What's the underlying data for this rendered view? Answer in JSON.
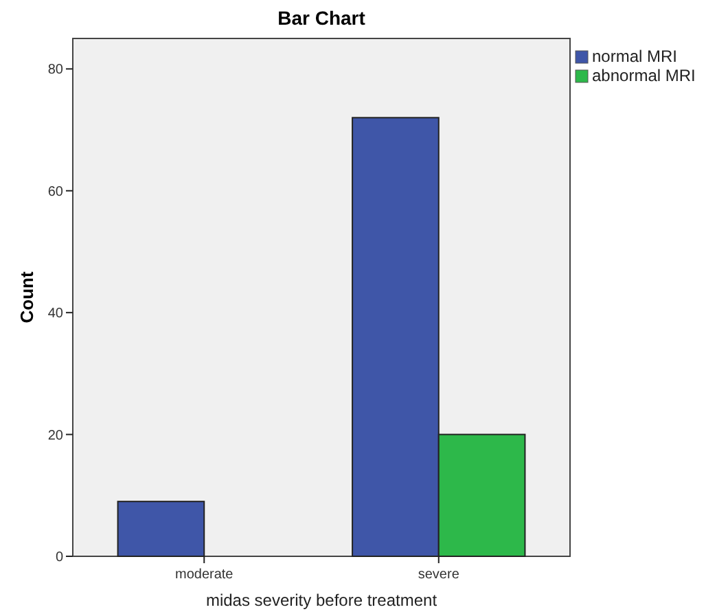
{
  "chart_data": {
    "type": "bar",
    "title": "Bar Chart",
    "xlabel": "midas severity before treatment",
    "ylabel": "Count",
    "categories": [
      "moderate",
      "severe"
    ],
    "series": [
      {
        "name": "normal MRI",
        "color": "#3f56a8",
        "values": [
          9,
          72
        ]
      },
      {
        "name": "abnormal MRI",
        "color": "#2db84a",
        "values": [
          null,
          20
        ]
      }
    ],
    "ylim": [
      0,
      85
    ],
    "yticks": [
      0,
      20,
      40,
      60,
      80
    ],
    "grid": false,
    "legend": "top right"
  }
}
